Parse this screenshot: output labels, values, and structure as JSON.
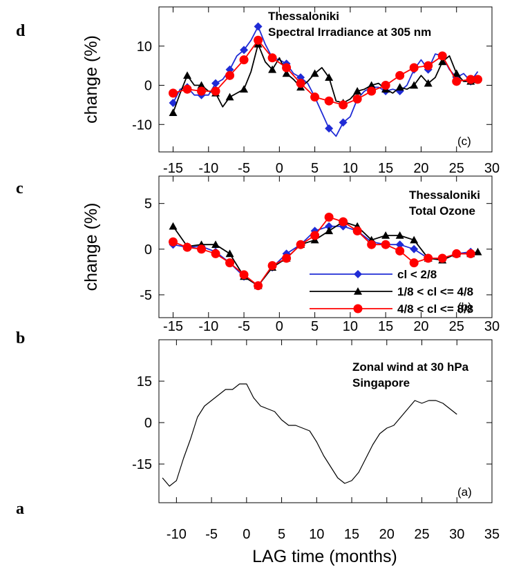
{
  "side_labels": [
    "d",
    "c",
    "b",
    "a"
  ],
  "xlabel": "LAG time (months)",
  "colors": {
    "blue": "#1f2bd6",
    "black": "#000000",
    "red": "#ff0000"
  },
  "chart_data": [
    {
      "id": "c",
      "type": "line",
      "tag": "(c)",
      "title": [
        "Thessaloniki",
        "Spectral Irradiance at 305 nm"
      ],
      "ylabel": "change (%)",
      "xlim": [
        -17,
        30
      ],
      "ylim": [
        -17,
        20
      ],
      "xticks": [
        -15,
        -10,
        -5,
        0,
        5,
        10,
        15,
        20,
        25,
        30
      ],
      "yticks": [
        -10,
        0,
        10
      ],
      "series": [
        {
          "name": "cl < 2/8",
          "color": "#1f2bd6",
          "marker": "diamond",
          "x": [
            -15,
            -14,
            -13,
            -12,
            -11,
            -10,
            -9,
            -8,
            -7,
            -6,
            -5,
            -4,
            -3,
            -2,
            -1,
            0,
            1,
            2,
            3,
            4,
            5,
            6,
            7,
            8,
            9,
            10,
            11,
            12,
            13,
            14,
            15,
            16,
            17,
            18,
            19,
            20,
            21,
            22,
            23,
            24,
            25,
            26,
            27,
            28
          ],
          "y": [
            -4.5,
            -1,
            -0.5,
            -2.5,
            -2.5,
            -2.5,
            0.5,
            1.5,
            4,
            7.5,
            9,
            11.5,
            15,
            10.5,
            7,
            6.5,
            5.5,
            3,
            2,
            0.5,
            -3,
            -7,
            -11,
            -13,
            -9.5,
            -8,
            -3.5,
            -1.5,
            -0.5,
            -0.5,
            -1.5,
            -1,
            -1.5,
            0,
            4,
            6.5,
            4,
            8,
            7.5,
            4,
            2,
            3,
            1,
            3.5
          ]
        },
        {
          "name": "1/8 < cl <= 4/8",
          "color": "#000000",
          "marker": "triangle",
          "x": [
            -15,
            -14,
            -13,
            -12,
            -11,
            -10,
            -9,
            -8,
            -7,
            -6,
            -5,
            -4,
            -3,
            -2,
            -1,
            0,
            1,
            2,
            3,
            4,
            5,
            6,
            7,
            8,
            9,
            10,
            11,
            12,
            13,
            14,
            15,
            16,
            17,
            18,
            19,
            20,
            21,
            22,
            23,
            24,
            25,
            26,
            27,
            28
          ],
          "y": [
            -7,
            -2,
            2.5,
            0,
            0,
            -1.5,
            -2,
            -5.5,
            -3,
            -2,
            -1,
            3.5,
            10.5,
            6,
            4,
            7,
            3,
            1.5,
            -0.5,
            1,
            3,
            4.5,
            2,
            -4,
            -4.5,
            -3.5,
            -1.5,
            -1,
            0,
            0.5,
            -1,
            -2,
            -0.5,
            -1,
            0,
            2.5,
            0.5,
            2,
            6,
            7.5,
            3,
            1,
            1,
            0.5
          ]
        },
        {
          "name": "4/8 < cl <= 8/8",
          "color": "#ff0000",
          "marker": "circle",
          "x": [
            -15,
            -13,
            -11,
            -9,
            -7,
            -5,
            -3,
            -1,
            1,
            3,
            5,
            7,
            9,
            11,
            13,
            15,
            17,
            19,
            21,
            23,
            25,
            27,
            28
          ],
          "y": [
            -2,
            -1,
            -1.5,
            -1.5,
            2.5,
            6.5,
            11.5,
            7,
            4.5,
            0.5,
            -3,
            -4,
            -5,
            -3.5,
            -1.5,
            0,
            2.5,
            4.5,
            5,
            7.5,
            1,
            1.5,
            1.5
          ]
        }
      ]
    },
    {
      "id": "b",
      "type": "line",
      "tag": "(b)",
      "title": [
        "Thessaloniki",
        "Total Ozone"
      ],
      "ylabel": "change (%)",
      "xlim": [
        -17,
        30
      ],
      "ylim": [
        -7.5,
        8
      ],
      "xticks": [
        -15,
        -10,
        -5,
        0,
        5,
        10,
        15,
        20,
        25,
        30
      ],
      "yticks": [
        -5,
        0,
        5
      ],
      "legend": [
        "cl < 2/8",
        "1/8 < cl <= 4/8",
        "4/8 < cl <= 8/8"
      ],
      "series": [
        {
          "name": "cl < 2/8",
          "color": "#1f2bd6",
          "marker": "diamond",
          "x": [
            -15,
            -13,
            -11,
            -9,
            -7,
            -5,
            -3,
            -1,
            1,
            3,
            5,
            7,
            9,
            11,
            13,
            15,
            17,
            19,
            21,
            23,
            25,
            27
          ],
          "y": [
            0.5,
            0.2,
            0.3,
            -0.3,
            -1.5,
            -3,
            -4,
            -2,
            -0.5,
            0.5,
            2,
            2.5,
            2.5,
            2,
            0.8,
            0.5,
            0.5,
            0,
            -1,
            -1,
            -0.5,
            -0.3
          ]
        },
        {
          "name": "1/8 < cl <= 4/8",
          "color": "#000000",
          "marker": "triangle",
          "x": [
            -15,
            -13,
            -11,
            -9,
            -7,
            -5,
            -3,
            -1,
            1,
            3,
            5,
            7,
            9,
            11,
            13,
            15,
            17,
            19,
            21,
            23,
            25,
            27,
            28
          ],
          "y": [
            2.5,
            0.3,
            0.5,
            0.5,
            -0.5,
            -3,
            -4,
            -2,
            -1,
            0.5,
            1,
            2,
            3,
            2.5,
            1,
            1.5,
            1.5,
            1,
            -1,
            -1.2,
            -0.5,
            -0.5,
            -0.3
          ]
        },
        {
          "name": "4/8 < cl <= 8/8",
          "color": "#ff0000",
          "marker": "circle",
          "x": [
            -15,
            -13,
            -11,
            -9,
            -7,
            -5,
            -3,
            -1,
            1,
            3,
            5,
            7,
            9,
            11,
            13,
            15,
            17,
            19,
            21,
            23,
            25,
            27
          ],
          "y": [
            0.8,
            0.2,
            0,
            -0.5,
            -1.5,
            -2.8,
            -4,
            -1.8,
            -1,
            0.5,
            1.5,
            3.5,
            3,
            2,
            0.5,
            0.5,
            -0.2,
            -1.5,
            -1,
            -1,
            -0.5,
            -0.5
          ]
        }
      ]
    },
    {
      "id": "a",
      "type": "line",
      "tag": "(a)",
      "title": [
        "Zonal wind at 30 hPa",
        "Singapore"
      ],
      "ylabel": "",
      "xlim": [
        -12.5,
        35
      ],
      "ylim": [
        -29,
        30
      ],
      "xticks": [
        -10,
        -5,
        0,
        5,
        10,
        15,
        20,
        25,
        30,
        35
      ],
      "yticks": [
        -15,
        0,
        15
      ],
      "series": [
        {
          "name": "",
          "color": "#000000",
          "marker": "none",
          "x": [
            -12,
            -11,
            -10,
            -9,
            -8,
            -7,
            -6,
            -5,
            -4,
            -3,
            -2,
            -1,
            0,
            1,
            2,
            3,
            4,
            5,
            6,
            7,
            8,
            9,
            10,
            11,
            12,
            13,
            14,
            15,
            16,
            17,
            18,
            19,
            20,
            21,
            22,
            23,
            24,
            25,
            26,
            27,
            28,
            29,
            30
          ],
          "y": [
            -20,
            -23,
            -21,
            -13,
            -6,
            2,
            6,
            8,
            10,
            12,
            12,
            14,
            14,
            9,
            6,
            5,
            4,
            1,
            -1,
            -1,
            -2,
            -3,
            -7,
            -12,
            -16,
            -20,
            -22,
            -21,
            -18,
            -13,
            -8,
            -4,
            -2,
            -1,
            2,
            5,
            8,
            7,
            8,
            8,
            7,
            5,
            3
          ]
        }
      ]
    }
  ]
}
